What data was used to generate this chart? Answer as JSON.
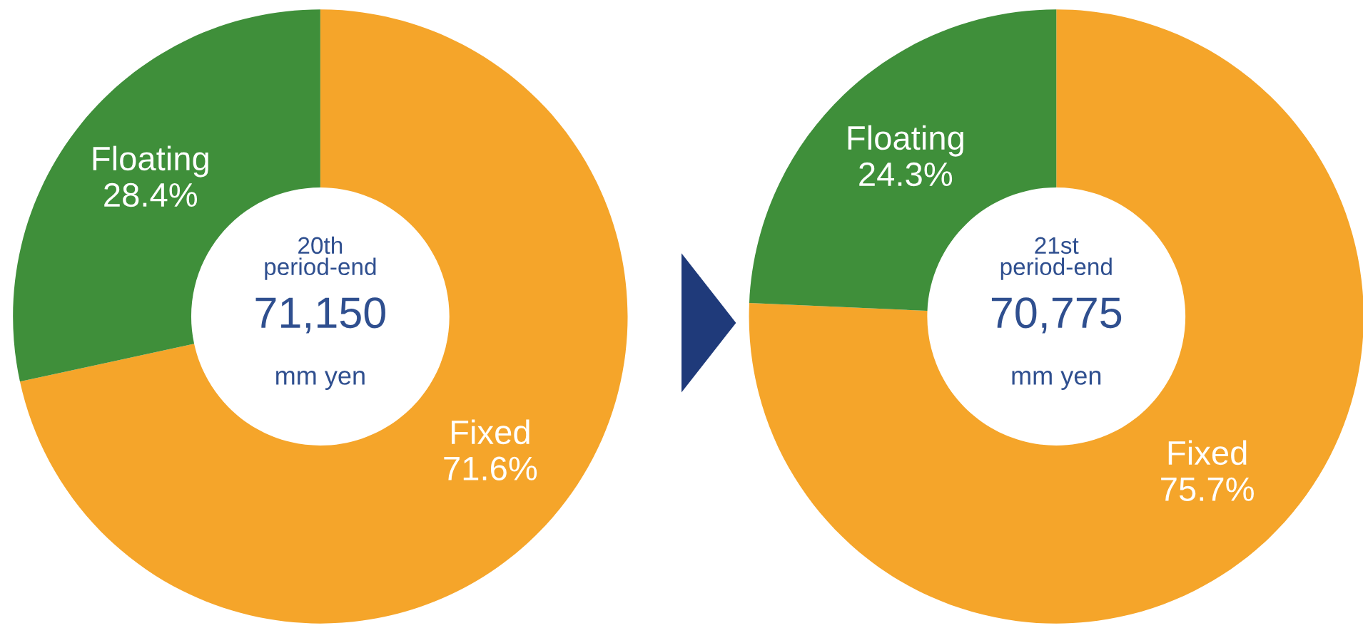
{
  "chart_data": [
    {
      "type": "donut",
      "categories": [
        "Fixed",
        "Floating"
      ],
      "values": [
        71.6,
        28.4
      ],
      "value_labels": [
        "71.6%",
        "28.4%"
      ],
      "colors": [
        "#f5a52a",
        "#3f8f3a"
      ],
      "annotations": [
        "20th\nperiod-end",
        "71,150",
        "mm yen"
      ]
    },
    {
      "type": "donut",
      "categories": [
        "Fixed",
        "Floating"
      ],
      "values": [
        75.7,
        24.3
      ],
      "value_labels": [
        "75.7%",
        "24.3%"
      ],
      "colors": [
        "#f5a52a",
        "#3f8f3a"
      ],
      "annotations": [
        "21st\nperiod-end",
        "70,775",
        "mm yen"
      ]
    }
  ]
}
